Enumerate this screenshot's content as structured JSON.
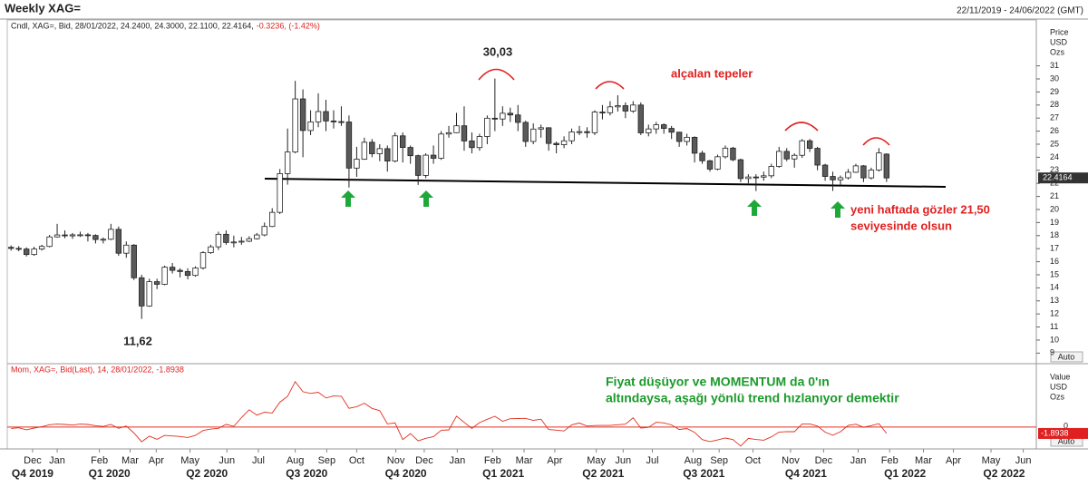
{
  "header": {
    "title": "Weekly XAG=",
    "range": "22/11/2019 - 24/06/2022 (GMT)"
  },
  "chart_data": [
    {
      "type": "candlestick",
      "title": "Cndl, XAG=, Bid, 28/01/2022, 24.2400, 24.3000, 22.1100, 22.4164,",
      "change_text": "-0.3236, (-1.42%)",
      "axis_label": [
        "Price",
        "USD",
        "Ozs"
      ],
      "last_value_label": "22.4164",
      "scale_button": "Auto",
      "annotations": [
        "30,03",
        "11,62",
        "alçalan tepeler",
        "yeni haftada gözler 21,50",
        "seviyesinde olsun"
      ],
      "up_color": "#ffffff",
      "down_color": "#5a5a5a",
      "xlim": [
        -0.5,
        133.5
      ],
      "ylim": [
        8.26,
        33.96
      ],
      "yticks": [
        9,
        10,
        11,
        12,
        13,
        14,
        15,
        16,
        17,
        18,
        19,
        20,
        21,
        22,
        23,
        24,
        25,
        26,
        27,
        28,
        29,
        30,
        31
      ],
      "open": [
        17.1,
        17.02,
        16.97,
        16.55,
        16.97,
        17.17,
        17.9,
        18.05,
        17.98,
        18.06,
        18.06,
        18.01,
        17.7,
        17.72,
        18.48,
        16.65,
        17.27,
        14.77,
        12.61,
        14.47,
        14.27,
        15.58,
        15.34,
        15.25,
        14.95,
        15.52,
        16.69,
        17.14,
        18.1,
        17.47,
        17.51,
        17.57,
        17.76,
        18.05,
        18.7,
        19.78,
        22.75,
        24.4,
        28.47,
        26.05,
        26.71,
        27.5,
        26.78,
        26.73,
        26.7,
        23.17,
        23.85,
        25.15,
        24.27,
        24.66,
        23.71,
        25.64,
        24.75,
        24.12,
        22.61,
        24.16,
        23.92,
        25.78,
        25.88,
        26.41,
        25.25,
        24.74,
        25.59,
        26.99,
        26.93,
        27.37,
        27.24,
        26.67,
        25.21,
        26.16,
        26.26,
        25.06,
        24.96,
        25.26,
        25.94,
        25.96,
        25.88,
        27.46,
        27.41,
        27.86,
        27.95,
        27.54,
        28.0,
        25.87,
        26.17,
        26.49,
        26.21,
        25.92,
        25.21,
        25.53,
        24.31,
        23.73,
        23.09,
        24.04,
        24.7,
        23.81,
        22.37,
        22.49,
        22.48,
        22.58,
        23.3,
        24.45,
        23.87,
        24.15,
        25.26,
        24.68,
        23.4,
        22.53,
        22.27,
        22.43,
        22.85,
        23.34,
        22.42,
        23.02,
        24.24
      ],
      "high": [
        17.25,
        17.2,
        17.1,
        17.15,
        17.3,
        18.05,
        18.9,
        18.4,
        18.2,
        18.3,
        18.2,
        18.1,
        17.85,
        18.9,
        18.7,
        17.55,
        17.35,
        15.0,
        14.7,
        14.7,
        15.7,
        15.9,
        15.5,
        15.5,
        15.65,
        16.8,
        17.3,
        18.3,
        18.4,
        18.0,
        17.9,
        17.95,
        18.2,
        19.0,
        20.1,
        23.1,
        26.2,
        29.85,
        29.2,
        27.6,
        28.9,
        28.4,
        27.6,
        27.9,
        27.2,
        24.8,
        25.5,
        25.4,
        25.0,
        24.9,
        25.9,
        25.9,
        24.9,
        24.2,
        24.3,
        24.9,
        26.0,
        26.4,
        27.4,
        27.9,
        25.9,
        25.8,
        27.2,
        30.03,
        27.9,
        27.8,
        28.0,
        26.8,
        26.6,
        26.5,
        26.3,
        25.2,
        25.6,
        26.2,
        26.4,
        26.3,
        27.6,
        28.0,
        28.3,
        28.75,
        28.2,
        28.3,
        28.2,
        26.5,
        26.7,
        26.6,
        26.4,
        25.95,
        25.8,
        25.6,
        24.5,
        23.8,
        24.2,
        24.9,
        24.8,
        23.9,
        22.7,
        22.7,
        22.9,
        23.5,
        24.8,
        24.7,
        24.3,
        25.4,
        25.4,
        24.8,
        23.5,
        22.9,
        22.6,
        23.1,
        23.5,
        23.4,
        23.2,
        24.7,
        24.3
      ],
      "low": [
        16.85,
        16.8,
        16.4,
        16.45,
        16.85,
        17.1,
        17.85,
        17.8,
        17.75,
        17.9,
        17.55,
        17.4,
        17.4,
        17.65,
        16.45,
        16.3,
        14.6,
        11.62,
        12.55,
        13.9,
        14.2,
        15.1,
        14.8,
        14.65,
        14.85,
        15.4,
        16.6,
        16.9,
        17.3,
        17.1,
        17.3,
        17.5,
        17.7,
        17.95,
        18.65,
        19.65,
        21.9,
        24.3,
        24.0,
        25.7,
        26.3,
        26.0,
        26.2,
        26.4,
        21.68,
        22.5,
        23.8,
        24.0,
        23.7,
        22.9,
        23.6,
        23.6,
        23.5,
        21.88,
        22.4,
        23.5,
        23.8,
        25.5,
        25.85,
        24.5,
        24.3,
        24.5,
        25.0,
        26.0,
        26.4,
        26.7,
        26.0,
        24.8,
        25.0,
        25.5,
        24.5,
        24.3,
        24.7,
        25.0,
        25.7,
        25.5,
        25.7,
        26.9,
        27.2,
        27.5,
        27.0,
        27.4,
        25.7,
        25.6,
        25.8,
        25.8,
        25.4,
        24.8,
        24.9,
        23.6,
        23.5,
        22.9,
        23.0,
        23.9,
        23.7,
        22.1,
        22.0,
        21.41,
        22.2,
        22.4,
        23.2,
        23.7,
        23.2,
        23.95,
        24.4,
        23.0,
        22.2,
        21.42,
        21.9,
        22.3,
        22.8,
        22.1,
        22.3,
        22.9,
        22.11
      ],
      "close": [
        17.02,
        16.97,
        16.55,
        16.97,
        17.17,
        17.9,
        18.05,
        17.98,
        18.06,
        18.06,
        18.01,
        17.7,
        17.72,
        18.48,
        16.65,
        17.27,
        14.77,
        12.61,
        14.47,
        14.27,
        15.58,
        15.34,
        15.25,
        14.95,
        15.52,
        16.69,
        17.14,
        18.1,
        17.47,
        17.51,
        17.57,
        17.76,
        18.05,
        18.7,
        19.78,
        22.75,
        24.4,
        28.47,
        26.05,
        26.71,
        27.5,
        26.78,
        26.73,
        26.7,
        23.17,
        23.85,
        25.15,
        24.27,
        24.66,
        23.71,
        25.64,
        24.75,
        24.12,
        22.61,
        24.16,
        23.92,
        25.78,
        25.88,
        26.41,
        25.25,
        24.74,
        25.59,
        26.99,
        26.93,
        27.37,
        27.24,
        26.67,
        25.21,
        26.16,
        26.26,
        25.06,
        24.96,
        25.26,
        25.94,
        25.96,
        25.88,
        27.46,
        27.41,
        27.86,
        27.95,
        27.54,
        28.0,
        25.87,
        26.17,
        26.49,
        26.21,
        25.92,
        25.21,
        25.53,
        24.31,
        23.73,
        23.09,
        24.04,
        24.7,
        23.81,
        22.37,
        22.49,
        22.48,
        22.58,
        23.3,
        24.45,
        23.87,
        24.15,
        25.26,
        24.68,
        23.4,
        22.53,
        22.27,
        22.43,
        22.85,
        23.34,
        22.42,
        23.02,
        24.33,
        22.4164
      ]
    },
    {
      "type": "line",
      "title": "Mom, XAG=, Bid(Last), 14, 28/01/2022, -1.8938",
      "axis_label": [
        "Value",
        "USD",
        "Ozs"
      ],
      "last_value_label": "-1.8938",
      "scale_button": "Auto",
      "annotations": [
        "Fiyat düşüyor ve MOMENTUM da 0'ın",
        "altındaysa, aşağı yönlü trend hızlanıyor demektir"
      ],
      "color": "#e03020",
      "xlim": [
        -0.5,
        133.5
      ],
      "ylim": [
        -6.5,
        18.6
      ],
      "yticks": [
        0
      ],
      "values": [
        -0.4,
        -0.2,
        -0.8,
        -0.3,
        0.1,
        0.7,
        0.9,
        0.8,
        0.6,
        0.9,
        0.8,
        0.4,
        0.2,
        0.8,
        -0.37,
        0.3,
        -1.78,
        -4.36,
        -2.7,
        -3.63,
        -2.47,
        -2.64,
        -2.81,
        -3.11,
        -2.49,
        -1.01,
        -0.58,
        -0.38,
        0.82,
        0.24,
        2.8,
        5.15,
        3.58,
        4.43,
        4.2,
        7.41,
        9.15,
        13.52,
        10.53,
        10.02,
        10.36,
        8.68,
        9.26,
        9.19,
        5.6,
        6.09,
        7.1,
        5.57,
        4.88,
        0.96,
        1.24,
        -3.72,
        -1.93,
        -4.1,
        -3.34,
        -2.86,
        -0.95,
        -0.82,
        3.24,
        1.4,
        -0.41,
        1.32,
        2.33,
        3.22,
        1.73,
        2.49,
        2.55,
        2.6,
        2.0,
        2.34,
        -0.72,
        -0.92,
        -1.15,
        0.69,
        1.22,
        0.29,
        0.47,
        0.48,
        0.49,
        0.71,
        0.87,
        2.79,
        -0.29,
        -0.09,
        1.43,
        1.25,
        0.66,
        -0.73,
        -0.43,
        -1.57,
        -3.73,
        -4.32,
        -3.82,
        -3.25,
        -3.73,
        -5.63,
        -3.38,
        -3.69,
        -3.91,
        -2.91,
        -1.47,
        -1.34,
        -1.38,
        0.95,
        0.95,
        0.31,
        -1.51,
        -2.43,
        -1.38,
        0.48,
        0.86,
        -0.06,
        0.44,
        1.03,
        -1.8938
      ],
      "xticks": [
        {
          "value": 2.8,
          "label": "Dec"
        },
        {
          "value": 6.0,
          "label": "Jan"
        },
        {
          "value": 11.5,
          "label": "Feb"
        },
        {
          "value": 15.5,
          "label": "Mar"
        },
        {
          "value": 18.9,
          "label": "Apr"
        },
        {
          "value": 23.3,
          "label": "May"
        },
        {
          "value": 28.1,
          "label": "Jun"
        },
        {
          "value": 32.2,
          "label": "Jul"
        },
        {
          "value": 37.0,
          "label": "Aug"
        },
        {
          "value": 41.1,
          "label": "Sep"
        },
        {
          "value": 45.0,
          "label": "Oct"
        },
        {
          "value": 50.1,
          "label": "Nov"
        },
        {
          "value": 53.8,
          "label": "Dec"
        },
        {
          "value": 58.1,
          "label": "Jan"
        },
        {
          "value": 62.7,
          "label": "Feb"
        },
        {
          "value": 66.8,
          "label": "Mar"
        },
        {
          "value": 70.8,
          "label": "Apr"
        },
        {
          "value": 76.2,
          "label": "May"
        },
        {
          "value": 79.7,
          "label": "Jun"
        },
        {
          "value": 83.5,
          "label": "Jul"
        },
        {
          "value": 88.8,
          "label": "Aug"
        },
        {
          "value": 92.2,
          "label": "Sep"
        },
        {
          "value": 96.6,
          "label": "Oct"
        },
        {
          "value": 101.5,
          "label": "Nov"
        },
        {
          "value": 105.8,
          "label": "Dec"
        },
        {
          "value": 110.3,
          "label": "Jan"
        },
        {
          "value": 114.4,
          "label": "Feb"
        },
        {
          "value": 118.8,
          "label": "Mar"
        },
        {
          "value": 122.7,
          "label": "Apr"
        },
        {
          "value": 127.6,
          "label": "May"
        },
        {
          "value": 131.8,
          "label": "Jun"
        }
      ],
      "quarter_ticks": [
        {
          "value": 2.8,
          "label": "Q4 2019"
        },
        {
          "value": 12.8,
          "label": "Q1 2020"
        },
        {
          "value": 25.5,
          "label": "Q2 2020"
        },
        {
          "value": 38.5,
          "label": "Q3 2020"
        },
        {
          "value": 51.4,
          "label": "Q4 2020"
        },
        {
          "value": 64.1,
          "label": "Q1 2021"
        },
        {
          "value": 77.1,
          "label": "Q2 2021"
        },
        {
          "value": 90.2,
          "label": "Q3 2021"
        },
        {
          "value": 103.5,
          "label": "Q4 2021"
        },
        {
          "value": 116.4,
          "label": "Q1 2022"
        },
        {
          "value": 129.3,
          "label": "Q2 2022"
        }
      ]
    }
  ]
}
